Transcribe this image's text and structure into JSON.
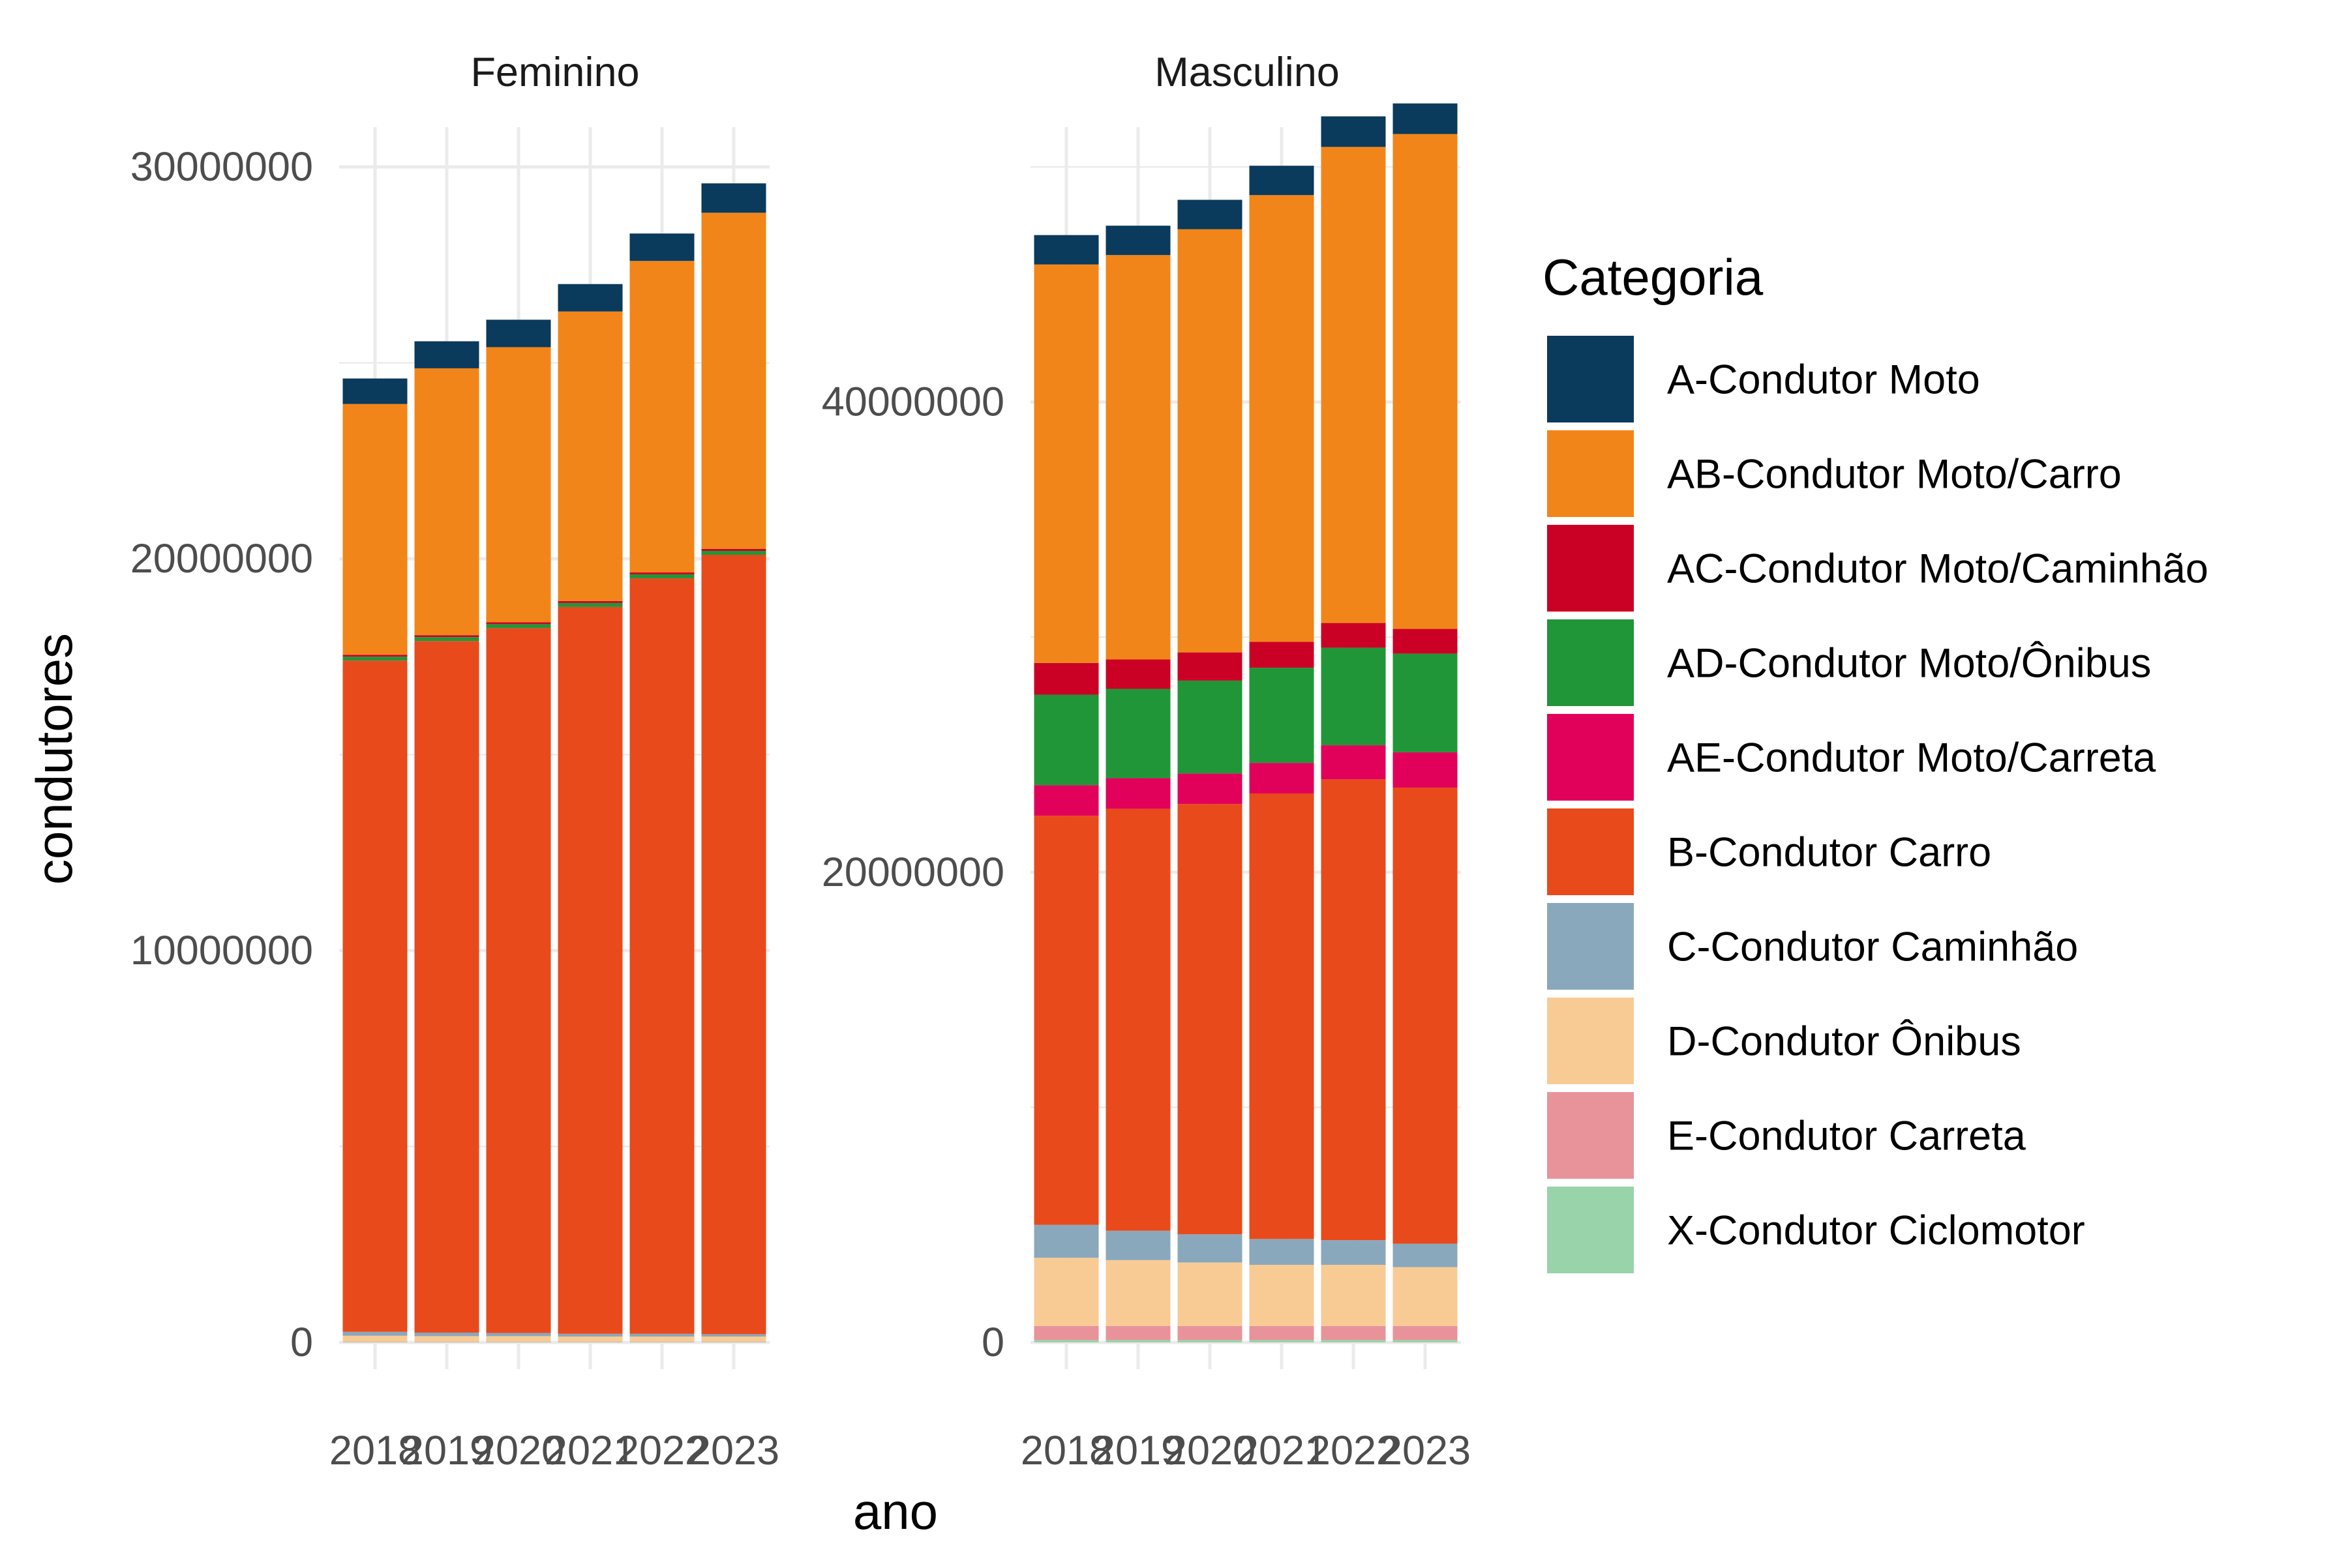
{
  "chart_data": {
    "type": "bar",
    "stacked": true,
    "facet_variable": "sexo",
    "xlabel": "ano",
    "ylabel": "condutores",
    "legend_title": "Categoria",
    "legend_position": "right",
    "grid": true,
    "categories": [
      "2018",
      "2019",
      "2020",
      "2021",
      "2022",
      "2023"
    ],
    "colors": {
      "A-Condutor Moto": "#0a3a5c",
      "AB-Condutor Moto/Carro": "#f28519",
      "AC-Condutor Moto/Caminhão": "#cb0025",
      "AD-Condutor Moto/Ônibus": "#219638",
      "AE-Condutor Moto/Carreta": "#e1005a",
      "B-Condutor Carro": "#e84a1c",
      "C-Condutor Caminhão": "#8aa8bc",
      "D-Condutor Ônibus": "#f8cb95",
      "E-Condutor Carreta": "#e8939a",
      "X-Condutor Ciclomotor": "#99d3a9"
    },
    "stack_order": [
      "X-Condutor Ciclomotor",
      "E-Condutor Carreta",
      "D-Condutor Ônibus",
      "C-Condutor Caminhão",
      "B-Condutor Carro",
      "AE-Condutor Moto/Carreta",
      "AD-Condutor Moto/Ônibus",
      "AC-Condutor Moto/Caminhão",
      "AB-Condutor Moto/Carro",
      "A-Condutor Moto"
    ],
    "legend": [
      "A-Condutor Moto",
      "AB-Condutor Moto/Carro",
      "AC-Condutor Moto/Caminhão",
      "AD-Condutor Moto/Ônibus",
      "AE-Condutor Moto/Carreta",
      "B-Condutor Carro",
      "C-Condutor Caminhão",
      "D-Condutor Ônibus",
      "E-Condutor Carreta",
      "X-Condutor Ciclomotor"
    ],
    "panels": [
      {
        "title": "Feminino",
        "ylim": [
          0,
          30000000
        ],
        "yticks": [
          0,
          10000000,
          20000000,
          30000000
        ],
        "ytick_labels": [
          "0",
          "10000000",
          "20000000",
          "30000000"
        ],
        "series": [
          {
            "name": "X-Condutor Ciclomotor",
            "values": [
              10000,
              10000,
              10000,
              10000,
              10000,
              10000
            ]
          },
          {
            "name": "E-Condutor Carreta",
            "values": [
              10000,
              10000,
              10000,
              10000,
              10000,
              10000
            ]
          },
          {
            "name": "D-Condutor Ônibus",
            "values": [
              150000,
              140000,
              140000,
              130000,
              130000,
              130000
            ]
          },
          {
            "name": "C-Condutor Caminhão",
            "values": [
              100000,
              90000,
              80000,
              70000,
              70000,
              60000
            ]
          },
          {
            "name": "B-Condutor Carro",
            "values": [
              17130000,
              17650000,
              17990000,
              18550000,
              19280000,
              19890000
            ]
          },
          {
            "name": "AE-Condutor Moto/Carreta",
            "values": [
              0,
              0,
              0,
              0,
              0,
              0
            ]
          },
          {
            "name": "AD-Condutor Moto/Ônibus",
            "values": [
              100000,
              100000,
              100000,
              100000,
              100000,
              100000
            ]
          },
          {
            "name": "AC-Condutor Moto/Caminhão",
            "values": [
              50000,
              50000,
              50000,
              50000,
              50000,
              50000
            ]
          },
          {
            "name": "AB-Condutor Moto/Carro",
            "values": [
              6400000,
              6810000,
              7020000,
              7390000,
              7950000,
              8580000
            ]
          },
          {
            "name": "A-Condutor Moto",
            "values": [
              650000,
              690000,
              700000,
              700000,
              700000,
              750000
            ]
          }
        ]
      },
      {
        "title": "Masculino",
        "ylim": [
          0,
          50000000
        ],
        "yticks": [
          0,
          20000000,
          40000000
        ],
        "ytick_labels": [
          "0",
          "20000000",
          "40000000"
        ],
        "series": [
          {
            "name": "X-Condutor Ciclomotor",
            "values": [
              100000,
              100000,
              100000,
              100000,
              100000,
              100000
            ]
          },
          {
            "name": "E-Condutor Carreta",
            "values": [
              600000,
              600000,
              600000,
              600000,
              600000,
              600000
            ]
          },
          {
            "name": "D-Condutor Ônibus",
            "values": [
              2900000,
              2800000,
              2700000,
              2600000,
              2600000,
              2500000
            ]
          },
          {
            "name": "C-Condutor Caminhão",
            "values": [
              1400000,
              1250000,
              1200000,
              1100000,
              1050000,
              1000000
            ]
          },
          {
            "name": "B-Condutor Carro",
            "values": [
              17400000,
              17950000,
              18300000,
              18950000,
              19600000,
              19400000
            ]
          },
          {
            "name": "AE-Condutor Moto/Carreta",
            "values": [
              1300000,
              1300000,
              1300000,
              1300000,
              1450000,
              1500000
            ]
          },
          {
            "name": "AD-Condutor Moto/Ônibus",
            "values": [
              3850000,
              3800000,
              3950000,
              4050000,
              4150000,
              4200000
            ]
          },
          {
            "name": "AC-Condutor Moto/Caminhão",
            "values": [
              1350000,
              1250000,
              1200000,
              1100000,
              1050000,
              1050000
            ]
          },
          {
            "name": "AB-Condutor Moto/Carro",
            "values": [
              16950000,
              17200000,
              18000000,
              19000000,
              20250000,
              21050000
            ]
          },
          {
            "name": "A-Condutor Moto",
            "values": [
              1250000,
              1250000,
              1250000,
              1250000,
              1300000,
              1300000
            ]
          }
        ]
      }
    ]
  }
}
